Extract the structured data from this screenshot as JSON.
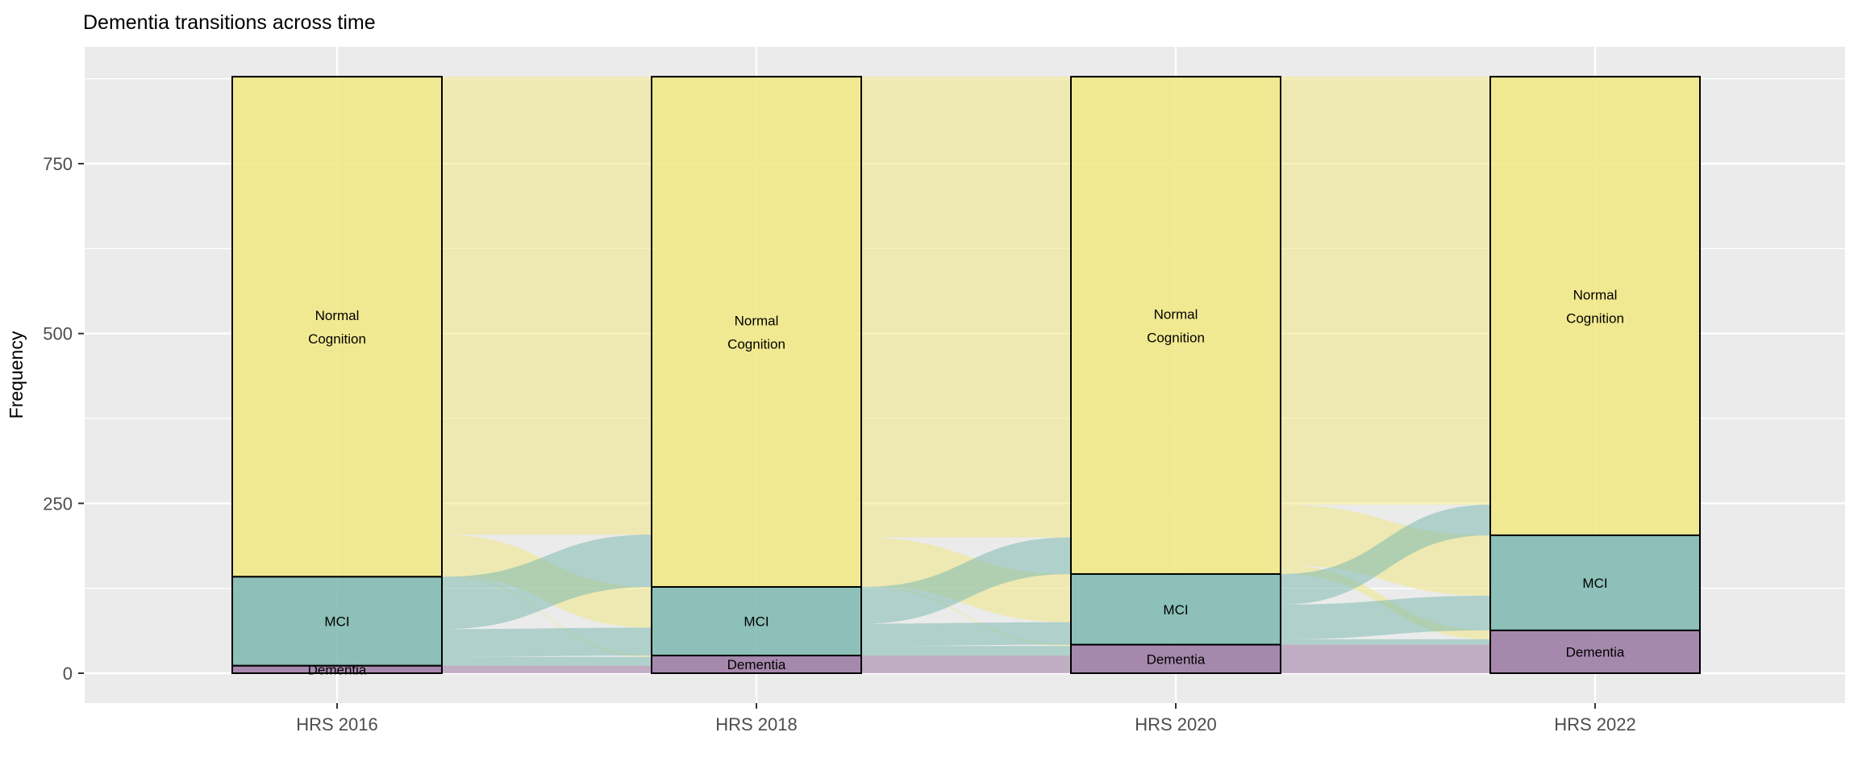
{
  "title": "Dementia transitions across time",
  "y_axis": {
    "label": "Frequency",
    "tick_labels": [
      "0",
      "250",
      "500",
      "750"
    ],
    "tick_values": [
      0,
      250,
      500,
      750
    ],
    "minor_tick_values": [
      125,
      375,
      625,
      875
    ]
  },
  "x_axis": {
    "labels": [
      "HRS 2016",
      "HRS 2018",
      "HRS 2020",
      "HRS 2022"
    ]
  },
  "colors": {
    "background": "#FFFFFF",
    "panel_background": "#EBEBEB",
    "gridline": "#FFFFFF",
    "tick_text": "#4D4D4D",
    "tick_mark": "#333333",
    "title_text": "#000000",
    "stratum_border": "#000000",
    "categories": {
      "Normal Cognition": "#F1E884",
      "MCI": "#7EB9B1",
      "Dementia": "#9C7AA4"
    }
  },
  "chart_data": {
    "type": "alluvial",
    "title": "Dementia transitions across time",
    "xlabel": "",
    "ylabel": "Frequency",
    "x": [
      "HRS 2016",
      "HRS 2018",
      "HRS 2020",
      "HRS 2022"
    ],
    "categories": [
      "Normal Cognition",
      "MCI",
      "Dementia"
    ],
    "axis_total": 878,
    "ylim": [
      0,
      878
    ],
    "grid": true,
    "legend": false,
    "strata": [
      {
        "category": "Normal Cognition",
        "values": [
          736,
          751,
          732,
          675
        ]
      },
      {
        "category": "MCI",
        "values": [
          131,
          101,
          104,
          140
        ]
      },
      {
        "category": "Dementia",
        "values": [
          11,
          26,
          42,
          63
        ]
      }
    ],
    "flows": [
      {
        "from_axis": "HRS 2016",
        "to_axis": "HRS 2018",
        "transitions": [
          {
            "from": "Normal Cognition",
            "to": "Normal Cognition",
            "n": 674
          },
          {
            "from": "Normal Cognition",
            "to": "MCI",
            "n": 60
          },
          {
            "from": "Normal Cognition",
            "to": "Dementia",
            "n": 2
          },
          {
            "from": "MCI",
            "to": "Normal Cognition",
            "n": 77
          },
          {
            "from": "MCI",
            "to": "MCI",
            "n": 41
          },
          {
            "from": "MCI",
            "to": "Dementia",
            "n": 13
          },
          {
            "from": "Dementia",
            "to": "Dementia",
            "n": 11
          }
        ]
      },
      {
        "from_axis": "HRS 2018",
        "to_axis": "HRS 2020",
        "transitions": [
          {
            "from": "Normal Cognition",
            "to": "Normal Cognition",
            "n": 678
          },
          {
            "from": "Normal Cognition",
            "to": "MCI",
            "n": 71
          },
          {
            "from": "Normal Cognition",
            "to": "Dementia",
            "n": 2
          },
          {
            "from": "MCI",
            "to": "Normal Cognition",
            "n": 54
          },
          {
            "from": "MCI",
            "to": "MCI",
            "n": 33
          },
          {
            "from": "MCI",
            "to": "Dementia",
            "n": 14
          },
          {
            "from": "Dementia",
            "to": "Dementia",
            "n": 26
          }
        ]
      },
      {
        "from_axis": "HRS 2020",
        "to_axis": "HRS 2022",
        "transitions": [
          {
            "from": "Normal Cognition",
            "to": "Normal Cognition",
            "n": 630
          },
          {
            "from": "Normal Cognition",
            "to": "MCI",
            "n": 89
          },
          {
            "from": "Normal Cognition",
            "to": "Dementia",
            "n": 13
          },
          {
            "from": "MCI",
            "to": "Normal Cognition",
            "n": 45
          },
          {
            "from": "MCI",
            "to": "MCI",
            "n": 51
          },
          {
            "from": "MCI",
            "to": "Dementia",
            "n": 8
          },
          {
            "from": "Dementia",
            "to": "Dementia",
            "n": 42
          }
        ]
      }
    ]
  }
}
